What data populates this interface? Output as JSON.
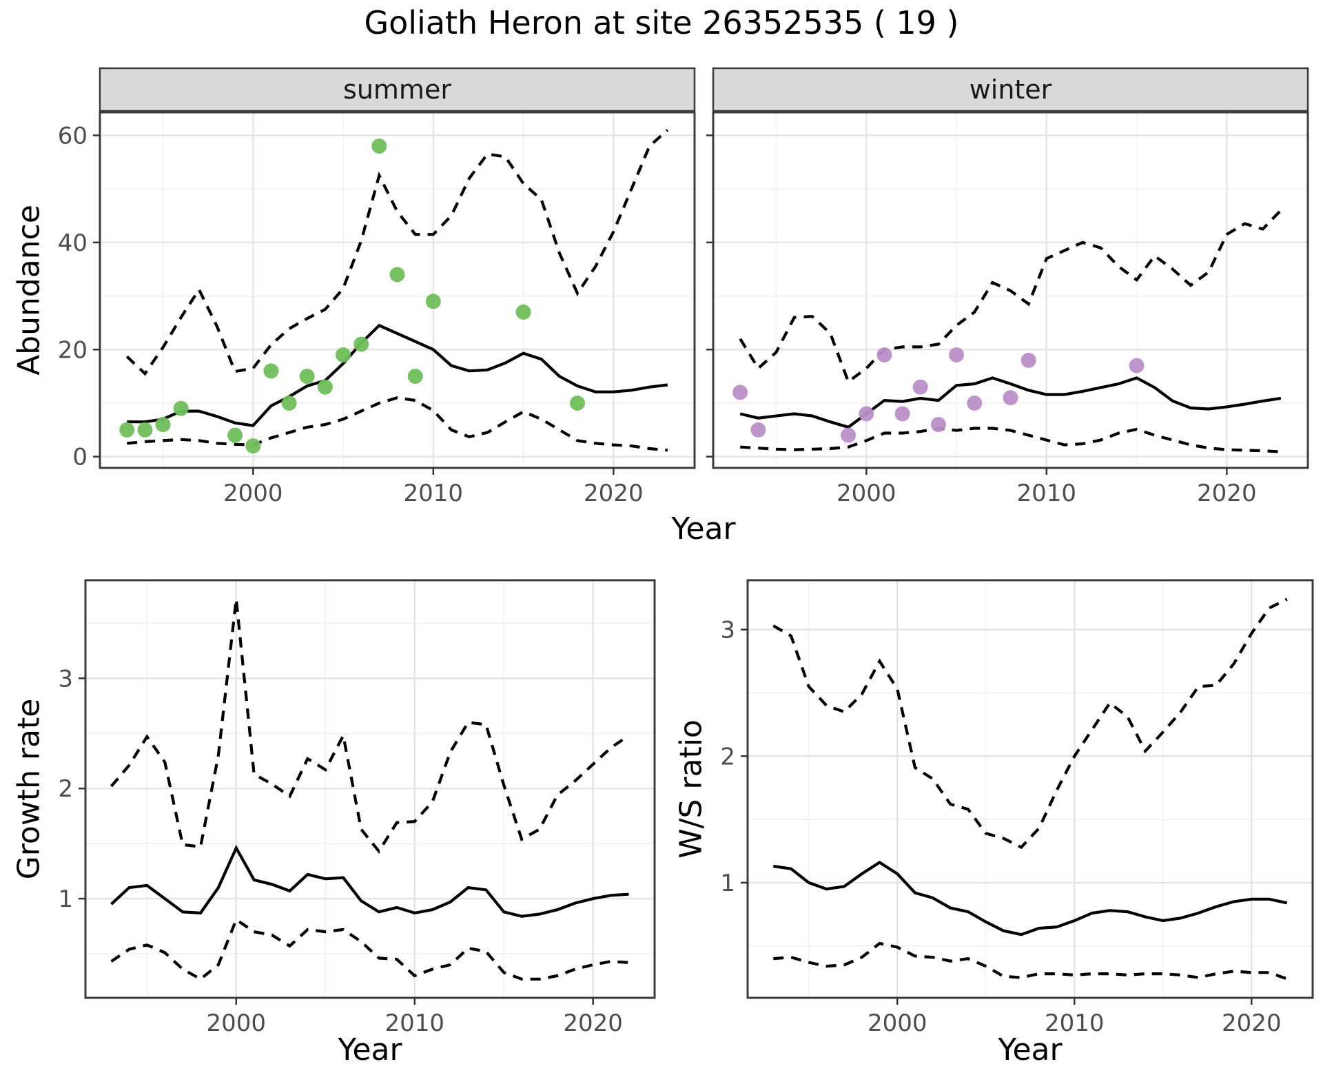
{
  "title": "Goliath Heron at site 26352535 ( 19 )",
  "colors": {
    "observed_summer": "#6FBE5A",
    "observed_winter": "#BA90C9",
    "line": "#000000",
    "grid_major": "#e4e4e4",
    "grid_minor": "#f1f1f1",
    "panel_border": "#3c3c3c",
    "strip_bg": "#d9d9d9",
    "tick_text": "#4d4d4d",
    "tick_mark": "#333333"
  },
  "chart_data": [
    {
      "id": "abundance_summer",
      "type": "line",
      "facet": "summer",
      "ylabel": "Abundance",
      "xlabel": "Year",
      "xlim": [
        1991.5,
        2024.5
      ],
      "ylim": [
        -2.1,
        64.3
      ],
      "xticks": [
        2000,
        2010,
        2020
      ],
      "yticks": [
        0,
        20,
        40,
        60
      ],
      "xminor": [
        1995,
        2005,
        2015
      ],
      "yminor": [
        10,
        30,
        50
      ],
      "x": [
        1993,
        1994,
        1995,
        1996,
        1997,
        1998,
        1999,
        2000,
        2001,
        2002,
        2003,
        2004,
        2005,
        2006,
        2007,
        2008,
        2009,
        2010,
        2011,
        2012,
        2013,
        2014,
        2015,
        2016,
        2017,
        2018,
        2019,
        2020,
        2021,
        2022,
        2023
      ],
      "series": [
        {
          "name": "lower_ci",
          "style": "dashed",
          "values": [
            2.5,
            2.8,
            3.0,
            3.2,
            3.0,
            2.5,
            2.3,
            2.2,
            3.5,
            4.5,
            5.5,
            6.0,
            7.0,
            8.5,
            10.0,
            11.0,
            10.5,
            8.6,
            5.0,
            3.7,
            4.5,
            6.5,
            8.4,
            7.0,
            5.0,
            3.0,
            2.5,
            2.2,
            2.0,
            1.5,
            1.2
          ]
        },
        {
          "name": "upper_ci",
          "style": "dashed",
          "values": [
            18.7,
            15.5,
            20.4,
            26.0,
            31.2,
            24.3,
            15.9,
            16.5,
            20.9,
            23.9,
            25.8,
            27.5,
            31.4,
            40.3,
            52.5,
            45.8,
            41.5,
            41.5,
            45.0,
            52.0,
            56.5,
            56.0,
            51.0,
            48.0,
            38.0,
            30.5,
            35.5,
            42.0,
            50.0,
            58.0,
            61.0
          ]
        },
        {
          "name": "median",
          "style": "solid",
          "values": [
            6.5,
            6.5,
            7.0,
            8.5,
            8.5,
            7.5,
            6.3,
            5.8,
            9.5,
            11.2,
            13.2,
            14.2,
            17.4,
            21.2,
            24.5,
            23.0,
            21.5,
            20.0,
            17.0,
            16.0,
            16.2,
            17.5,
            19.3,
            18.2,
            15.0,
            13.2,
            12.1,
            12.1,
            12.4,
            13.0,
            13.4
          ]
        }
      ],
      "points": {
        "name": "observed",
        "color": "#6FBE5A",
        "x": [
          1993,
          1994,
          1995,
          1996,
          1999,
          2000,
          2001,
          2002,
          2003,
          2004,
          2005,
          2006,
          2007,
          2008,
          2009,
          2010,
          2015,
          2018
        ],
        "y": [
          5,
          5,
          6,
          9,
          4,
          2,
          16,
          10,
          15,
          13,
          19,
          21,
          58,
          34,
          15,
          29,
          27,
          10
        ]
      }
    },
    {
      "id": "abundance_winter",
      "type": "line",
      "facet": "winter",
      "ylabel": "Abundance",
      "xlabel": "Year",
      "xlim": [
        1991.5,
        2024.5
      ],
      "ylim": [
        -2.1,
        64.3
      ],
      "xticks": [
        2000,
        2010,
        2020
      ],
      "yticks": [
        0,
        20,
        40,
        60
      ],
      "xminor": [
        1995,
        2005,
        2015
      ],
      "yminor": [
        10,
        30,
        50
      ],
      "x": [
        1993,
        1994,
        1995,
        1996,
        1997,
        1998,
        1999,
        2000,
        2001,
        2002,
        2003,
        2004,
        2005,
        2006,
        2007,
        2008,
        2009,
        2010,
        2011,
        2012,
        2013,
        2014,
        2015,
        2016,
        2017,
        2018,
        2019,
        2020,
        2021,
        2022,
        2023
      ],
      "series": [
        {
          "name": "lower_ci",
          "style": "dashed",
          "values": [
            1.8,
            1.6,
            1.4,
            1.3,
            1.4,
            1.5,
            1.8,
            3.0,
            4.4,
            4.4,
            4.7,
            5.3,
            4.9,
            5.3,
            5.3,
            4.9,
            4.0,
            3.1,
            2.2,
            2.4,
            3.1,
            4.4,
            5.1,
            4.0,
            3.1,
            2.2,
            1.6,
            1.3,
            1.2,
            1.1,
            0.9
          ]
        },
        {
          "name": "upper_ci",
          "style": "dashed",
          "values": [
            22.0,
            16.5,
            19.5,
            26.0,
            26.2,
            23.0,
            14.0,
            16.5,
            20.0,
            20.5,
            20.5,
            21.0,
            24.5,
            27.0,
            32.5,
            31.0,
            28.5,
            37.0,
            38.5,
            40.0,
            39.0,
            35.5,
            33.0,
            37.5,
            35.0,
            32.0,
            34.5,
            41.5,
            43.5,
            42.5,
            46.0
          ]
        },
        {
          "name": "median",
          "style": "solid",
          "values": [
            8.0,
            7.2,
            7.6,
            8.0,
            7.6,
            6.5,
            5.5,
            8.0,
            10.5,
            10.3,
            10.9,
            10.5,
            13.3,
            13.6,
            14.7,
            13.6,
            12.4,
            11.6,
            11.6,
            12.2,
            12.9,
            13.6,
            14.7,
            12.9,
            10.4,
            9.1,
            8.9,
            9.3,
            9.8,
            10.4,
            10.9
          ]
        }
      ],
      "points": {
        "name": "observed",
        "color": "#BA90C9",
        "x": [
          1993,
          1994,
          1999,
          2000,
          2001,
          2002,
          2003,
          2004,
          2005,
          2006,
          2008,
          2009,
          2015
        ],
        "y": [
          12,
          5,
          4,
          8,
          19,
          8,
          13,
          6,
          19,
          10,
          11,
          18,
          17
        ]
      }
    },
    {
      "id": "growth_rate",
      "type": "line",
      "facet": null,
      "ylabel": "Growth rate",
      "xlabel": "Year",
      "xlim": [
        1991.55,
        2023.45
      ],
      "ylim": [
        0.1,
        3.89
      ],
      "xticks": [
        2000,
        2010,
        2020
      ],
      "yticks": [
        1,
        2,
        3
      ],
      "xminor": [
        1995,
        2005,
        2015
      ],
      "yminor": [
        0.5,
        1.5,
        2.5,
        3.5
      ],
      "x": [
        1993,
        1994,
        1995,
        1996,
        1997,
        1998,
        1999,
        2000,
        2001,
        2002,
        2003,
        2004,
        2005,
        2006,
        2007,
        2008,
        2009,
        2010,
        2011,
        2012,
        2013,
        2014,
        2015,
        2016,
        2017,
        2018,
        2019,
        2020,
        2021,
        2022
      ],
      "series": [
        {
          "name": "lower_ci",
          "style": "dashed",
          "values": [
            0.43,
            0.54,
            0.58,
            0.51,
            0.36,
            0.27,
            0.4,
            0.81,
            0.7,
            0.67,
            0.57,
            0.72,
            0.7,
            0.72,
            0.61,
            0.46,
            0.45,
            0.3,
            0.36,
            0.4,
            0.55,
            0.52,
            0.33,
            0.27,
            0.27,
            0.3,
            0.36,
            0.4,
            0.43,
            0.42
          ]
        },
        {
          "name": "upper_ci",
          "style": "dashed",
          "values": [
            2.02,
            2.21,
            2.47,
            2.24,
            1.49,
            1.47,
            2.3,
            3.72,
            2.13,
            2.04,
            1.93,
            2.27,
            2.17,
            2.48,
            1.63,
            1.43,
            1.69,
            1.7,
            1.88,
            2.33,
            2.6,
            2.58,
            2.03,
            1.54,
            1.63,
            1.94,
            2.07,
            2.22,
            2.37,
            2.48
          ]
        },
        {
          "name": "median",
          "style": "solid",
          "values": [
            0.95,
            1.1,
            1.12,
            1.0,
            0.88,
            0.87,
            1.1,
            1.46,
            1.17,
            1.13,
            1.07,
            1.22,
            1.18,
            1.19,
            0.98,
            0.88,
            0.92,
            0.87,
            0.9,
            0.97,
            1.1,
            1.08,
            0.88,
            0.84,
            0.86,
            0.9,
            0.96,
            1.0,
            1.03,
            1.04
          ]
        }
      ],
      "points": null
    },
    {
      "id": "ws_ratio",
      "type": "line",
      "facet": null,
      "ylabel": "W/S ratio",
      "xlabel": "Year",
      "xlim": [
        1991.55,
        2023.45
      ],
      "ylim": [
        0.09,
        3.39
      ],
      "xticks": [
        2000,
        2010,
        2020
      ],
      "yticks": [
        1,
        2,
        3
      ],
      "xminor": [
        1995,
        2005,
        2015
      ],
      "yminor": [
        0.5,
        1.5,
        2.5
      ],
      "x": [
        1993,
        1994,
        1995,
        1996,
        1997,
        1998,
        1999,
        2000,
        2001,
        2002,
        2003,
        2004,
        2005,
        2006,
        2007,
        2008,
        2009,
        2010,
        2011,
        2012,
        2013,
        2014,
        2015,
        2016,
        2017,
        2018,
        2019,
        2020,
        2021,
        2022
      ],
      "series": [
        {
          "name": "lower_ci",
          "style": "dashed",
          "values": [
            0.4,
            0.41,
            0.37,
            0.34,
            0.35,
            0.41,
            0.52,
            0.49,
            0.42,
            0.41,
            0.38,
            0.4,
            0.34,
            0.26,
            0.25,
            0.28,
            0.28,
            0.27,
            0.28,
            0.28,
            0.27,
            0.28,
            0.28,
            0.27,
            0.25,
            0.28,
            0.3,
            0.29,
            0.29,
            0.24
          ]
        },
        {
          "name": "upper_ci",
          "style": "dashed",
          "values": [
            3.03,
            2.95,
            2.55,
            2.4,
            2.35,
            2.49,
            2.75,
            2.53,
            1.91,
            1.82,
            1.62,
            1.58,
            1.39,
            1.35,
            1.28,
            1.43,
            1.73,
            2.0,
            2.21,
            2.42,
            2.31,
            2.04,
            2.19,
            2.35,
            2.55,
            2.56,
            2.73,
            2.97,
            3.17,
            3.24
          ]
        },
        {
          "name": "median",
          "style": "solid",
          "values": [
            1.13,
            1.11,
            1.0,
            0.95,
            0.97,
            1.07,
            1.16,
            1.07,
            0.92,
            0.88,
            0.8,
            0.77,
            0.69,
            0.62,
            0.59,
            0.64,
            0.65,
            0.7,
            0.76,
            0.78,
            0.77,
            0.73,
            0.7,
            0.72,
            0.76,
            0.81,
            0.85,
            0.87,
            0.87,
            0.84
          ]
        }
      ],
      "points": null
    }
  ]
}
